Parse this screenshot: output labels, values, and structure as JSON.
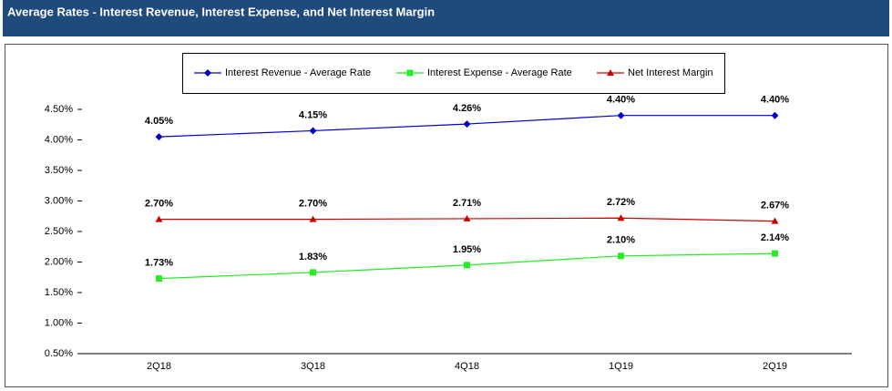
{
  "chart_data": {
    "type": "line",
    "title": "Average Rates - Interest Revenue, Interest Expense, and Net Interest Margin",
    "categories": [
      "2Q18",
      "3Q18",
      "4Q18",
      "1Q19",
      "2Q19"
    ],
    "series": [
      {
        "name": "Interest Revenue - Average Rate",
        "color": "#0000cc",
        "marker": "diamond",
        "values": [
          4.05,
          4.15,
          4.26,
          4.4,
          4.4
        ],
        "value_labels": [
          "4.05%",
          "4.15%",
          "4.26%",
          "4.40%",
          "4.40%"
        ]
      },
      {
        "name": "Interest Expense - Average Rate",
        "color": "#22ee22",
        "marker": "square",
        "values": [
          1.73,
          1.83,
          1.95,
          2.1,
          2.14
        ],
        "value_labels": [
          "1.73%",
          "1.83%",
          "1.95%",
          "2.10%",
          "2.14%"
        ]
      },
      {
        "name": "Net Interest Margin",
        "color": "#cc0000",
        "marker": "triangle",
        "values": [
          2.7,
          2.7,
          2.71,
          2.72,
          2.67
        ],
        "value_labels": [
          "2.70%",
          "2.70%",
          "2.71%",
          "2.72%",
          "2.67%"
        ]
      }
    ],
    "ylim": [
      0.5,
      4.5
    ],
    "yticks": [
      {
        "value": 0.5,
        "label": "0.50%"
      },
      {
        "value": 1.0,
        "label": "1.00%"
      },
      {
        "value": 1.5,
        "label": "1.50%"
      },
      {
        "value": 2.0,
        "label": "2.00%"
      },
      {
        "value": 2.5,
        "label": "2.50%"
      },
      {
        "value": 3.0,
        "label": "3.00%"
      },
      {
        "value": 3.5,
        "label": "3.50%"
      },
      {
        "value": 4.0,
        "label": "4.00%"
      },
      {
        "value": 4.5,
        "label": "4.50%"
      }
    ],
    "legend": "top"
  }
}
